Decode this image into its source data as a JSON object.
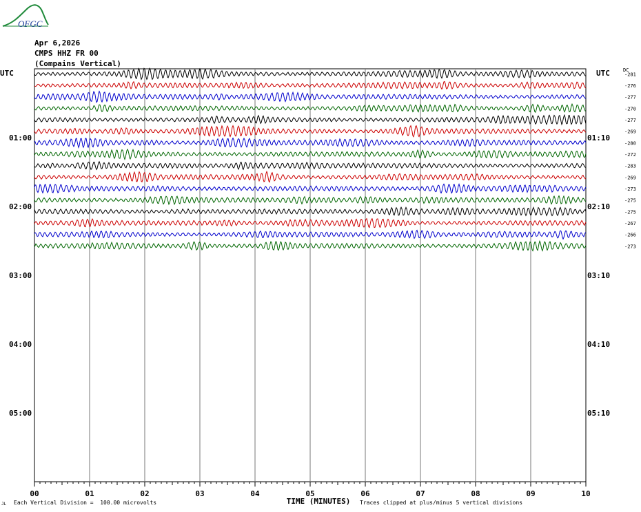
{
  "logo": {
    "text": "OFGC"
  },
  "header": {
    "date": "Apr 6,2026",
    "station": "CMPS HHZ FR 00",
    "name": "(Compains Vertical)"
  },
  "labels": {
    "left_tz": "UTC",
    "right_tz": "UTC",
    "dc_header": "DC",
    "xlabel": "TIME (MINUTES)"
  },
  "footnotes": {
    "left_mark": "JL",
    "division": "Each Vertical Division =  100.00 microvolts",
    "clip": "Traces clipped at plus/minus 5 vertical divisions"
  },
  "chart_data": {
    "type": "line",
    "title": "CMPS HHZ FR 00 (Compains Vertical)",
    "xlabel": "TIME (MINUTES)",
    "xlim": [
      0,
      10
    ],
    "x_ticks": [
      "00",
      "01",
      "02",
      "03",
      "04",
      "05",
      "06",
      "07",
      "08",
      "09",
      "10"
    ],
    "left_time_labels": [
      "01:00",
      "02:00",
      "03:00",
      "04:00",
      "05:00"
    ],
    "right_time_labels": [
      "01:10",
      "02:10",
      "03:10",
      "04:10",
      "05:10"
    ],
    "rows_total": 36,
    "rows_per_hour": 6,
    "row_minutes": 10,
    "trace_colors": [
      "#000000",
      "#cc0000",
      "#0000cc",
      "#006600"
    ],
    "traces_drawn": 16,
    "dc_offsets": [
      -281,
      -276,
      -277,
      -270,
      -277,
      -269,
      -280,
      -272,
      -283,
      -269,
      -273,
      -275,
      -275,
      -267,
      -266,
      -273
    ],
    "vertical_division_microvolts": 100.0,
    "clip_divisions": 5,
    "grid": true
  }
}
